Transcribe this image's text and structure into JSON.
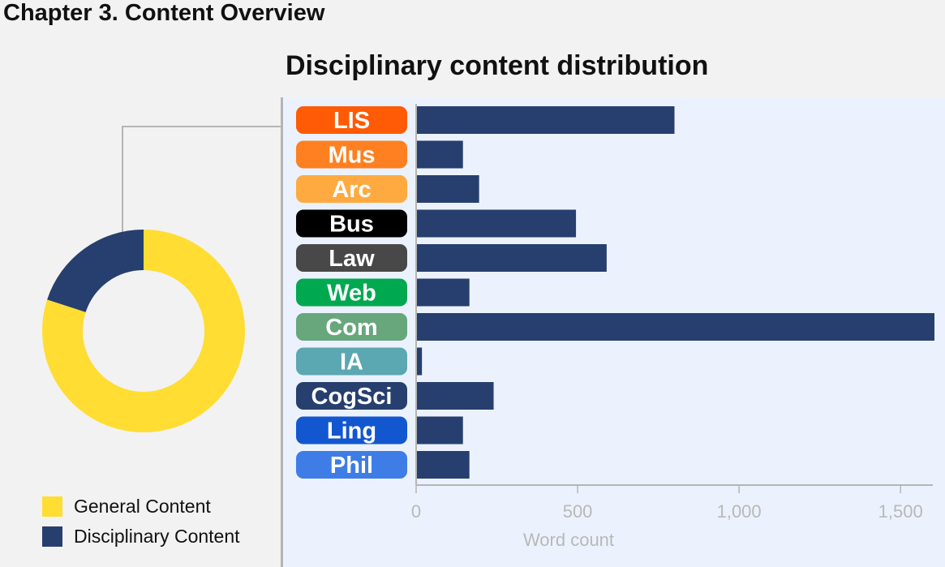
{
  "page": {
    "heading": "Chapter 3. Content Overview"
  },
  "chart_data": [
    {
      "type": "pie",
      "title": "",
      "slices": [
        {
          "name": "General Content",
          "value": 0.8,
          "color": "#ffdd33"
        },
        {
          "name": "Disciplinary Content",
          "value": 0.2,
          "color": "#263f6e"
        }
      ],
      "legend_position": "bottom-left"
    },
    {
      "type": "bar",
      "orientation": "horizontal",
      "title": "Disciplinary content distribution",
      "xlabel": "Word count",
      "xlim": [
        0,
        1600
      ],
      "x_ticks": [
        "0",
        "500",
        "1,000",
        "1,500"
      ],
      "bar_color": "#263f6e",
      "categories": [
        {
          "label": "LIS",
          "color": "#ff5a05",
          "value": 800
        },
        {
          "label": "Mus",
          "color": "#ff8020",
          "value": 145
        },
        {
          "label": "Arc",
          "color": "#ffaa40",
          "value": 195
        },
        {
          "label": "Bus",
          "color": "#000000",
          "value": 495
        },
        {
          "label": "Law",
          "color": "#484848",
          "value": 590
        },
        {
          "label": "Web",
          "color": "#00a850",
          "value": 165
        },
        {
          "label": "Com",
          "color": "#68a67c",
          "value": 1605
        },
        {
          "label": "IA",
          "color": "#5ba7b2",
          "value": 18
        },
        {
          "label": "CogSci",
          "color": "#263f6e",
          "value": 240
        },
        {
          "label": "Ling",
          "color": "#1257d0",
          "value": 145
        },
        {
          "label": "Phil",
          "color": "#3e7de6",
          "value": 165
        }
      ]
    }
  ]
}
